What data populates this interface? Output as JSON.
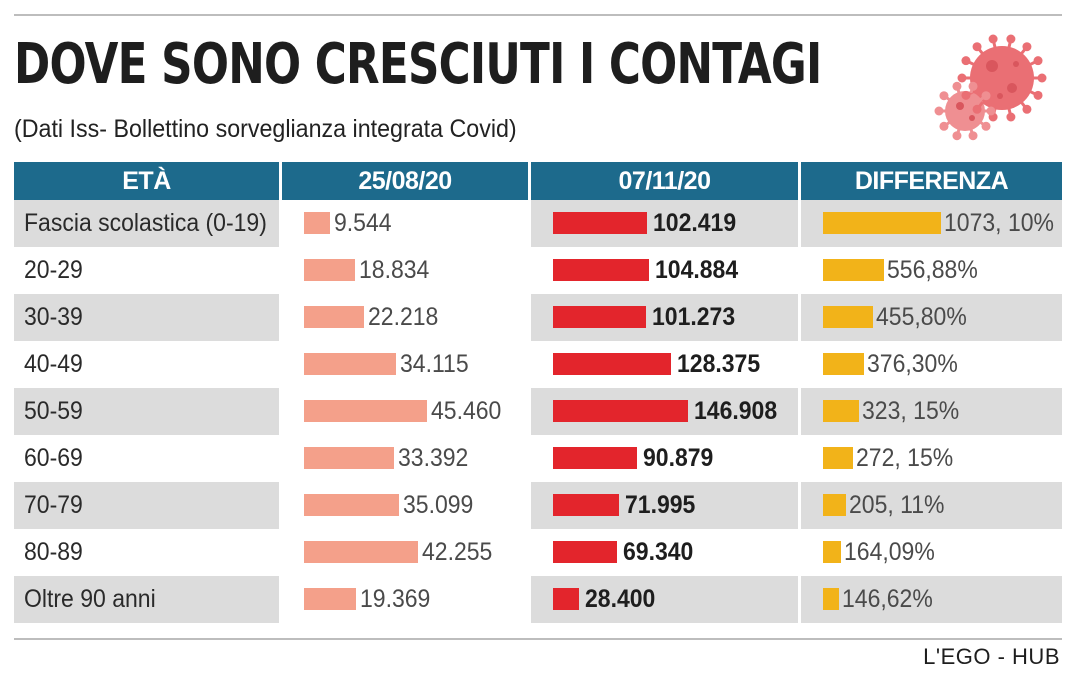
{
  "header": {
    "title": "DOVE SONO CRESCIUTI I CONTAGI",
    "subtitle": "(Dati Iss- Bollettino sorveglianza integrata Covid)"
  },
  "credit": "L'EGO - HUB",
  "colors": {
    "header_bg": "#1d6a8c",
    "bar_0825": "#f4a08a",
    "bar_0711": "#e3252c",
    "bar_diff": "#f2b319",
    "virus": "#ea6f74",
    "row_shade": "#dcdcdc"
  },
  "icons": {
    "virus": "coronavirus-icon"
  },
  "chart_data": {
    "type": "table",
    "columns": [
      "ETÀ",
      "25/08/20",
      "07/11/20",
      "DIFFERENZA"
    ],
    "rows": [
      {
        "age": "Fascia scolastica (0-19)",
        "v0825": 9544,
        "v0825_label": "9.544",
        "v0711": 102419,
        "v0711_label": "102.419",
        "diff": 1073.1,
        "diff_label": "1073, 10%"
      },
      {
        "age": "20-29",
        "v0825": 18834,
        "v0825_label": "18.834",
        "v0711": 104884,
        "v0711_label": "104.884",
        "diff": 556.88,
        "diff_label": "556,88%"
      },
      {
        "age": "30-39",
        "v0825": 22218,
        "v0825_label": "22.218",
        "v0711": 101273,
        "v0711_label": "101.273",
        "diff": 455.8,
        "diff_label": "455,80%"
      },
      {
        "age": "40-49",
        "v0825": 34115,
        "v0825_label": "34.115",
        "v0711": 128375,
        "v0711_label": "128.375",
        "diff": 376.3,
        "diff_label": "376,30%"
      },
      {
        "age": "50-59",
        "v0825": 45460,
        "v0825_label": "45.460",
        "v0711": 146908,
        "v0711_label": "146.908",
        "diff": 323.15,
        "diff_label": "323, 15%"
      },
      {
        "age": "60-69",
        "v0825": 33392,
        "v0825_label": "33.392",
        "v0711": 90879,
        "v0711_label": "90.879",
        "diff": 272.15,
        "diff_label": "272, 15%"
      },
      {
        "age": "70-79",
        "v0825": 35099,
        "v0825_label": "35.099",
        "v0711": 71995,
        "v0711_label": "71.995",
        "diff": 205.11,
        "diff_label": "205, 11%"
      },
      {
        "age": "80-89",
        "v0825": 42255,
        "v0825_label": "42.255",
        "v0711": 69340,
        "v0711_label": "69.340",
        "diff": 164.09,
        "diff_label": "164,09%"
      },
      {
        "age": "Oltre 90 anni",
        "v0825": 19369,
        "v0825_label": "19.369",
        "v0711": 28400,
        "v0711_label": "28.400",
        "diff": 146.62,
        "diff_label": "146,62%"
      }
    ]
  }
}
